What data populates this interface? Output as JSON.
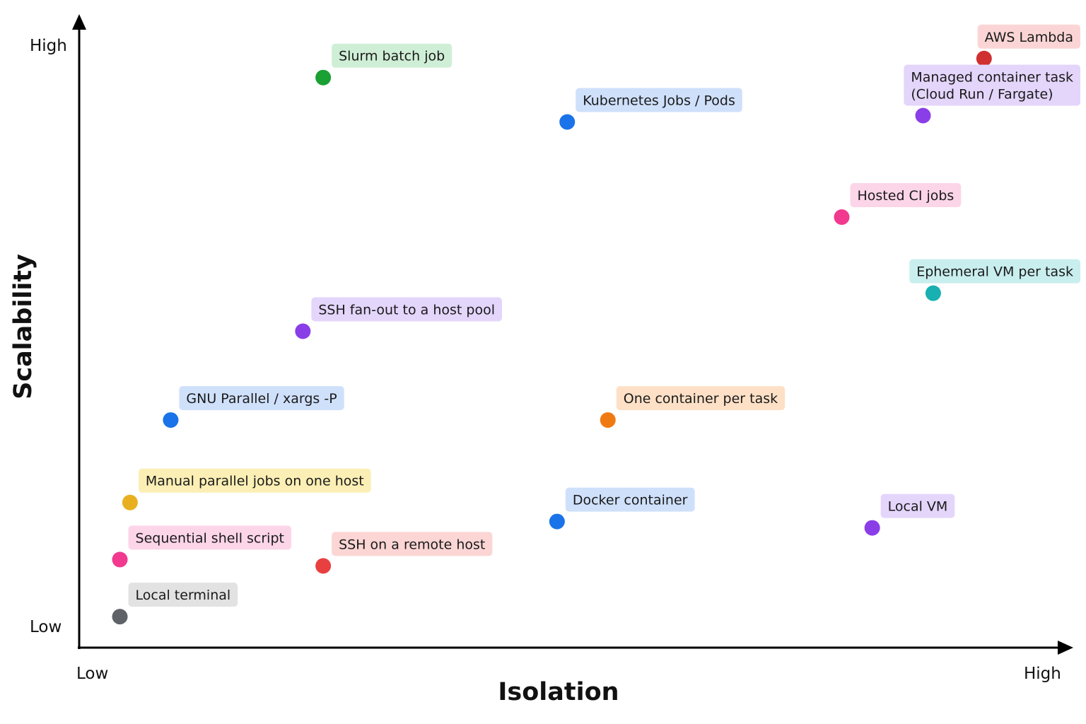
{
  "chart_data": {
    "type": "scatter",
    "title": "",
    "xlabel": "Isolation",
    "ylabel": "Scalability",
    "xlim": [
      0,
      10
    ],
    "ylim": [
      0,
      10
    ],
    "x_tick_labels": {
      "low": "Low",
      "high": "High"
    },
    "y_tick_labels": {
      "low": "Low",
      "high": "High"
    },
    "grid": false,
    "legend": "none",
    "points": [
      {
        "label": "AWS Lambda",
        "x": 8.9,
        "y": 9.3,
        "color": "#d03030",
        "bg": "#fbd5d5"
      },
      {
        "label": "Slurm batch job",
        "x": 2.4,
        "y": 9.0,
        "color": "#1aa033",
        "bg": "#cfeed6"
      },
      {
        "label": "Kubernetes Jobs / Pods",
        "x": 4.8,
        "y": 8.3,
        "color": "#1a73e8",
        "bg": "#cfe0fb"
      },
      {
        "label": "Managed container task\n(Cloud Run / Fargate)",
        "x": 8.3,
        "y": 8.4,
        "color": "#8a3ee8",
        "bg": "#e4d5fb"
      },
      {
        "label": "Hosted CI jobs",
        "x": 7.5,
        "y": 6.8,
        "color": "#f0398f",
        "bg": "#fcd5e8"
      },
      {
        "label": "Ephemeral VM per task",
        "x": 8.4,
        "y": 5.6,
        "color": "#18b0b0",
        "bg": "#c9eeee"
      },
      {
        "label": "SSH fan-out to a host pool",
        "x": 2.2,
        "y": 5.0,
        "color": "#8a3ee8",
        "bg": "#e4d5fb"
      },
      {
        "label": "GNU Parallel / xargs -P",
        "x": 0.9,
        "y": 3.6,
        "color": "#1a73e8",
        "bg": "#cfe0fb"
      },
      {
        "label": "One container per task",
        "x": 5.2,
        "y": 3.6,
        "color": "#f07a12",
        "bg": "#fde0c6"
      },
      {
        "label": "Manual parallel jobs on one host",
        "x": 0.5,
        "y": 2.3,
        "color": "#e8b020",
        "bg": "#fbefb5"
      },
      {
        "label": "Docker container",
        "x": 4.7,
        "y": 2.0,
        "color": "#1a73e8",
        "bg": "#cfe0fb"
      },
      {
        "label": "Local VM",
        "x": 7.8,
        "y": 1.9,
        "color": "#8a3ee8",
        "bg": "#e4d5fb"
      },
      {
        "label": "Sequential shell script",
        "x": 0.4,
        "y": 1.4,
        "color": "#f0398f",
        "bg": "#fcd5e8"
      },
      {
        "label": "SSH on a remote host",
        "x": 2.4,
        "y": 1.3,
        "color": "#e84040",
        "bg": "#fcd5d5"
      },
      {
        "label": "Local terminal",
        "x": 0.4,
        "y": 0.5,
        "color": "#5f6368",
        "bg": "#e2e2e2"
      }
    ]
  }
}
